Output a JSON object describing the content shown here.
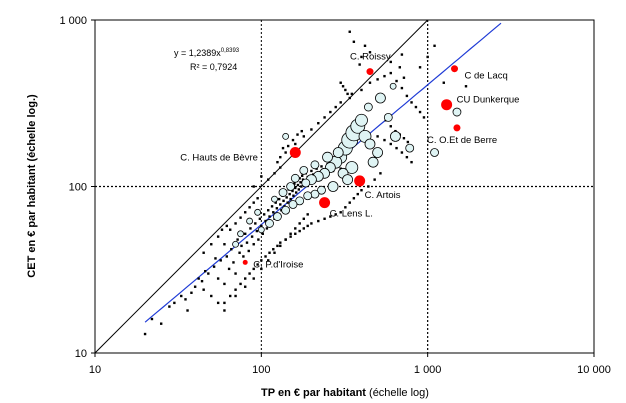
{
  "chart_data": {
    "type": "scatter",
    "title": "",
    "x_scale": "log",
    "y_scale": "log",
    "xlim": [
      10,
      10000
    ],
    "ylim": [
      10,
      1000
    ],
    "xlabel_bold": "TP en € par habitant",
    "xlabel_light": " (échelle log)",
    "ylabel": "CET en € par habitant (échelle log.)",
    "x_tick_labels": [
      "10",
      "100",
      "1 000",
      "10 000"
    ],
    "x_tick_values": [
      10,
      100,
      1000,
      10000
    ],
    "y_tick_labels": [
      "10",
      "100",
      "1 000"
    ],
    "y_tick_values": [
      10,
      100,
      1000
    ],
    "reference_lines": {
      "x": 1000,
      "y": 100
    },
    "identity_line": {
      "from": [
        10,
        10
      ],
      "to": [
        1000,
        1000
      ]
    },
    "regression": {
      "equation_text": "y = 1,2389x",
      "exponent_text": "0,8393",
      "r2_text": "R² = 0,7924",
      "coefficient": 1.2389,
      "exponent": 0.8393,
      "x_range": [
        20,
        3000
      ]
    },
    "highlighted": [
      {
        "label": "C. Roissy",
        "x": 450,
        "y": 490
      },
      {
        "label": "C de  Lacq",
        "x": 1450,
        "y": 510
      },
      {
        "label": "CU Dunkerque",
        "x": 1300,
        "y": 310
      },
      {
        "label": "C. O.Et de Berre",
        "x": 1500,
        "y": 225
      },
      {
        "label": "C. Hauts de Bèvre",
        "x": 160,
        "y": 160
      },
      {
        "label": "C. Artois",
        "x": 390,
        "y": 108
      },
      {
        "label": "C. Lens L.",
        "x": 240,
        "y": 80
      },
      {
        "label": "C. P.d'Iroise",
        "x": 80,
        "y": 35
      }
    ],
    "circles": [
      {
        "x": 300,
        "y": 150,
        "s": 6
      },
      {
        "x": 320,
        "y": 170,
        "s": 7
      },
      {
        "x": 340,
        "y": 190,
        "s": 8
      },
      {
        "x": 360,
        "y": 210,
        "s": 8
      },
      {
        "x": 380,
        "y": 230,
        "s": 7
      },
      {
        "x": 400,
        "y": 250,
        "s": 6
      },
      {
        "x": 280,
        "y": 140,
        "s": 6
      },
      {
        "x": 260,
        "y": 130,
        "s": 5
      },
      {
        "x": 240,
        "y": 120,
        "s": 5
      },
      {
        "x": 220,
        "y": 115,
        "s": 5
      },
      {
        "x": 200,
        "y": 110,
        "s": 5
      },
      {
        "x": 185,
        "y": 105,
        "s": 4
      },
      {
        "x": 420,
        "y": 200,
        "s": 6
      },
      {
        "x": 450,
        "y": 180,
        "s": 5
      },
      {
        "x": 500,
        "y": 160,
        "s": 5
      },
      {
        "x": 350,
        "y": 130,
        "s": 6
      },
      {
        "x": 310,
        "y": 120,
        "s": 5
      },
      {
        "x": 270,
        "y": 100,
        "s": 5
      },
      {
        "x": 230,
        "y": 95,
        "s": 4
      },
      {
        "x": 210,
        "y": 90,
        "s": 4
      },
      {
        "x": 190,
        "y": 88,
        "s": 4
      },
      {
        "x": 170,
        "y": 82,
        "s": 4
      },
      {
        "x": 155,
        "y": 78,
        "s": 4
      },
      {
        "x": 140,
        "y": 72,
        "s": 4
      },
      {
        "x": 125,
        "y": 66,
        "s": 4
      },
      {
        "x": 112,
        "y": 60,
        "s": 4
      },
      {
        "x": 100,
        "y": 55,
        "s": 3
      },
      {
        "x": 520,
        "y": 340,
        "s": 5
      },
      {
        "x": 580,
        "y": 260,
        "s": 4
      },
      {
        "x": 640,
        "y": 200,
        "s": 5
      },
      {
        "x": 780,
        "y": 170,
        "s": 4
      },
      {
        "x": 470,
        "y": 140,
        "s": 5
      },
      {
        "x": 330,
        "y": 110,
        "s": 5
      },
      {
        "x": 290,
        "y": 160,
        "s": 5
      },
      {
        "x": 250,
        "y": 150,
        "s": 5
      },
      {
        "x": 210,
        "y": 135,
        "s": 4
      },
      {
        "x": 180,
        "y": 125,
        "s": 4
      },
      {
        "x": 160,
        "y": 112,
        "s": 4
      },
      {
        "x": 150,
        "y": 100,
        "s": 4
      },
      {
        "x": 135,
        "y": 92,
        "s": 4
      },
      {
        "x": 120,
        "y": 84,
        "s": 3
      },
      {
        "x": 95,
        "y": 70,
        "s": 3
      },
      {
        "x": 85,
        "y": 62,
        "s": 3
      },
      {
        "x": 75,
        "y": 52,
        "s": 3
      },
      {
        "x": 70,
        "y": 45,
        "s": 3
      },
      {
        "x": 140,
        "y": 200,
        "s": 3
      },
      {
        "x": 1500,
        "y": 280,
        "s": 4
      },
      {
        "x": 1100,
        "y": 160,
        "s": 4
      },
      {
        "x": 620,
        "y": 400,
        "s": 3
      },
      {
        "x": 440,
        "y": 300,
        "s": 4
      }
    ],
    "dots": [
      [
        25,
        15
      ],
      [
        30,
        20
      ],
      [
        33,
        22
      ],
      [
        36,
        18
      ],
      [
        40,
        25
      ],
      [
        42,
        28
      ],
      [
        45,
        24
      ],
      [
        48,
        30
      ],
      [
        50,
        22
      ],
      [
        52,
        33
      ],
      [
        55,
        28
      ],
      [
        57,
        36
      ],
      [
        60,
        26
      ],
      [
        62,
        38
      ],
      [
        64,
        32
      ],
      [
        66,
        42
      ],
      [
        68,
        35
      ],
      [
        70,
        30
      ],
      [
        72,
        48
      ],
      [
        74,
        40
      ],
      [
        76,
        44
      ],
      [
        78,
        38
      ],
      [
        80,
        52
      ],
      [
        82,
        46
      ],
      [
        84,
        41
      ],
      [
        86,
        56
      ],
      [
        88,
        50
      ],
      [
        90,
        45
      ],
      [
        92,
        60
      ],
      [
        94,
        54
      ],
      [
        96,
        48
      ],
      [
        98,
        64
      ],
      [
        100,
        58
      ],
      [
        102,
        52
      ],
      [
        104,
        68
      ],
      [
        106,
        62
      ],
      [
        108,
        56
      ],
      [
        110,
        72
      ],
      [
        112,
        66
      ],
      [
        114,
        60
      ],
      [
        116,
        76
      ],
      [
        118,
        70
      ],
      [
        120,
        64
      ],
      [
        122,
        80
      ],
      [
        124,
        74
      ],
      [
        126,
        68
      ],
      [
        128,
        84
      ],
      [
        130,
        78
      ],
      [
        132,
        72
      ],
      [
        134,
        88
      ],
      [
        136,
        82
      ],
      [
        138,
        76
      ],
      [
        140,
        92
      ],
      [
        142,
        86
      ],
      [
        144,
        80
      ],
      [
        146,
        96
      ],
      [
        148,
        90
      ],
      [
        150,
        84
      ],
      [
        152,
        100
      ],
      [
        154,
        94
      ],
      [
        156,
        88
      ],
      [
        158,
        104
      ],
      [
        160,
        98
      ],
      [
        162,
        92
      ],
      [
        164,
        108
      ],
      [
        166,
        102
      ],
      [
        168,
        96
      ],
      [
        170,
        112
      ],
      [
        172,
        106
      ],
      [
        174,
        100
      ],
      [
        176,
        116
      ],
      [
        178,
        110
      ],
      [
        180,
        104
      ],
      [
        185,
        120
      ],
      [
        190,
        114
      ],
      [
        195,
        108
      ],
      [
        200,
        124
      ],
      [
        205,
        118
      ],
      [
        210,
        112
      ],
      [
        215,
        128
      ],
      [
        220,
        122
      ],
      [
        225,
        116
      ],
      [
        230,
        132
      ],
      [
        235,
        126
      ],
      [
        240,
        120
      ],
      [
        250,
        136
      ],
      [
        260,
        130
      ],
      [
        270,
        124
      ],
      [
        280,
        140
      ],
      [
        290,
        134
      ],
      [
        300,
        128
      ],
      [
        60,
        45
      ],
      [
        65,
        55
      ],
      [
        70,
        60
      ],
      [
        75,
        65
      ],
      [
        80,
        70
      ],
      [
        85,
        75
      ],
      [
        90,
        80
      ],
      [
        95,
        85
      ],
      [
        55,
        20
      ],
      [
        60,
        18
      ],
      [
        70,
        22
      ],
      [
        80,
        25
      ],
      [
        90,
        28
      ],
      [
        100,
        32
      ],
      [
        110,
        36
      ],
      [
        120,
        40
      ],
      [
        130,
        44
      ],
      [
        140,
        48
      ],
      [
        150,
        52
      ],
      [
        160,
        56
      ],
      [
        170,
        60
      ],
      [
        180,
        64
      ],
      [
        190,
        68
      ],
      [
        45,
        40
      ],
      [
        50,
        45
      ],
      [
        55,
        50
      ],
      [
        58,
        55
      ],
      [
        62,
        58
      ],
      [
        110,
        110
      ],
      [
        120,
        120
      ],
      [
        130,
        130
      ],
      [
        90,
        100
      ],
      [
        100,
        115
      ],
      [
        125,
        140
      ],
      [
        140,
        160
      ],
      [
        160,
        180
      ],
      [
        180,
        200
      ],
      [
        200,
        220
      ],
      [
        220,
        240
      ],
      [
        240,
        260
      ],
      [
        260,
        280
      ],
      [
        280,
        300
      ],
      [
        300,
        320
      ],
      [
        350,
        360
      ],
      [
        400,
        380
      ],
      [
        450,
        420
      ],
      [
        500,
        440
      ],
      [
        550,
        460
      ],
      [
        600,
        480
      ],
      [
        650,
        430
      ],
      [
        700,
        390
      ],
      [
        750,
        350
      ],
      [
        800,
        320
      ],
      [
        850,
        300
      ],
      [
        900,
        280
      ],
      [
        950,
        260
      ],
      [
        400,
        600
      ],
      [
        420,
        700
      ],
      [
        450,
        640
      ],
      [
        390,
        540
      ],
      [
        600,
        560
      ],
      [
        680,
        520
      ],
      [
        720,
        450
      ],
      [
        340,
        850
      ],
      [
        360,
        740
      ],
      [
        300,
        420
      ],
      [
        310,
        400
      ],
      [
        320,
        380
      ],
      [
        330,
        360
      ],
      [
        340,
        340
      ],
      [
        500,
        200
      ],
      [
        550,
        190
      ],
      [
        600,
        180
      ],
      [
        650,
        170
      ],
      [
        700,
        160
      ],
      [
        750,
        150
      ],
      [
        800,
        140
      ],
      [
        520,
        120
      ],
      [
        480,
        110
      ],
      [
        440,
        100
      ],
      [
        400,
        95
      ],
      [
        380,
        90
      ],
      [
        360,
        85
      ],
      [
        340,
        80
      ],
      [
        320,
        75
      ],
      [
        300,
        70
      ],
      [
        280,
        68
      ],
      [
        260,
        66
      ],
      [
        240,
        64
      ],
      [
        220,
        62
      ],
      [
        200,
        60
      ],
      [
        190,
        58
      ],
      [
        180,
        56
      ],
      [
        170,
        54
      ],
      [
        160,
        52
      ],
      [
        150,
        50
      ],
      [
        140,
        48
      ],
      [
        130,
        46
      ],
      [
        125,
        44
      ],
      [
        118,
        42
      ],
      [
        112,
        40
      ],
      [
        106,
        38
      ],
      [
        100,
        36
      ],
      [
        95,
        34
      ],
      [
        90,
        32
      ],
      [
        85,
        30
      ],
      [
        80,
        28
      ],
      [
        75,
        26
      ],
      [
        70,
        24
      ],
      [
        65,
        22
      ],
      [
        60,
        20
      ],
      [
        20,
        13
      ],
      [
        22,
        16
      ],
      [
        28,
        19
      ],
      [
        35,
        21
      ],
      [
        38,
        23
      ],
      [
        44,
        27
      ],
      [
        46,
        31
      ],
      [
        53,
        37
      ],
      [
        130,
        150
      ],
      [
        135,
        170
      ],
      [
        145,
        175
      ],
      [
        155,
        190
      ],
      [
        165,
        205
      ],
      [
        175,
        215
      ],
      [
        1100,
        700
      ],
      [
        1000,
        600
      ],
      [
        900,
        520
      ],
      [
        700,
        620
      ],
      [
        1700,
        400
      ],
      [
        1250,
        420
      ],
      [
        560,
        250
      ],
      [
        600,
        230
      ],
      [
        640,
        215
      ],
      [
        680,
        205
      ],
      [
        720,
        195
      ],
      [
        760,
        185
      ]
    ]
  }
}
